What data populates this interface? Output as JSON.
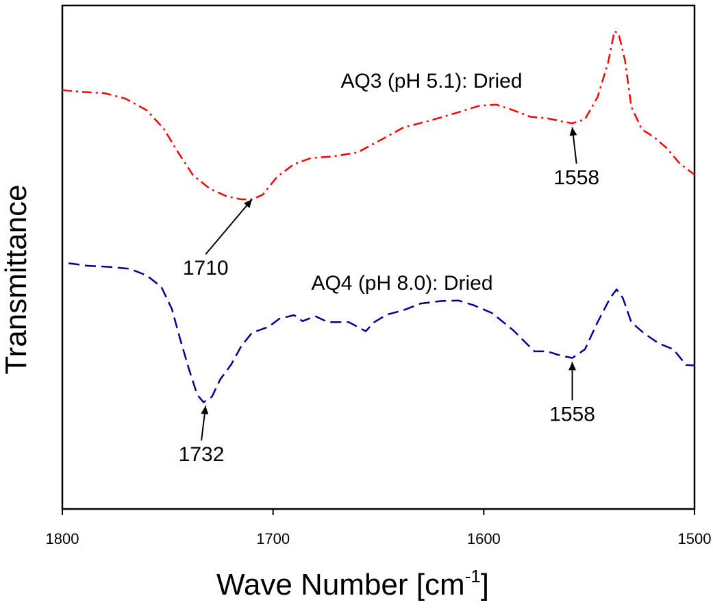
{
  "chart_data": {
    "type": "line",
    "title": "",
    "xlabel": "Wave Number [cm",
    "xlabel_sup": "-1",
    "xlabel_suffix": "]",
    "ylabel": "Transmittance",
    "xlim": [
      1800,
      1500
    ],
    "x_reversed": true,
    "ylim": [
      0,
      100
    ],
    "y_ticks_shown": false,
    "grid": false,
    "legend": "none",
    "x_ticks": [
      "1800",
      "1700",
      "1600",
      "1500"
    ],
    "series": [
      {
        "name": "AQ3 (pH 5.1): Dried",
        "color": "#ff0000",
        "dash": "dash-dot",
        "x": [
          1800,
          1790,
          1780,
          1770,
          1760,
          1752,
          1745,
          1738,
          1730,
          1722,
          1715,
          1710,
          1705,
          1698,
          1690,
          1682,
          1672,
          1660,
          1648,
          1638,
          1625,
          1612,
          1602,
          1594,
          1586,
          1578,
          1570,
          1562,
          1558,
          1552,
          1546,
          1541,
          1538,
          1536,
          1533,
          1530,
          1525,
          1519,
          1513,
          1507,
          1500
        ],
        "y": [
          83.2,
          82.8,
          82.6,
          81.5,
          79.2,
          75.6,
          70.8,
          66.3,
          63.6,
          62.1,
          61.5,
          61.5,
          62.4,
          66.0,
          68.5,
          69.7,
          70.0,
          70.8,
          73.5,
          75.8,
          77.2,
          78.8,
          80.1,
          80.3,
          79.2,
          77.9,
          77.6,
          76.9,
          76.6,
          77.4,
          81.8,
          88.7,
          94.9,
          94.4,
          89.1,
          79.9,
          75.4,
          73.8,
          71.6,
          68.6,
          66.4
        ],
        "label": "AQ3 (pH 5.1): Dried"
      },
      {
        "name": "AQ4 (pH 8.0): Dried",
        "color": "#000099",
        "dash": "dashed",
        "x": [
          1797,
          1788,
          1778,
          1768,
          1760,
          1753,
          1748,
          1744,
          1740,
          1736,
          1733,
          1729,
          1725,
          1720,
          1715,
          1710,
          1702,
          1697,
          1690,
          1686,
          1680,
          1674,
          1664,
          1656,
          1652,
          1646,
          1638,
          1630,
          1620,
          1612,
          1605,
          1596,
          1586,
          1576,
          1570,
          1563,
          1558,
          1552,
          1546,
          1540,
          1537,
          1534,
          1530,
          1524,
          1517,
          1510,
          1504,
          1500
        ],
        "y": [
          48.8,
          48.3,
          48.1,
          47.7,
          46.4,
          44.1,
          39.7,
          33.6,
          27.9,
          22.7,
          21.2,
          22.3,
          25.8,
          28.6,
          32.4,
          35.0,
          36.2,
          37.8,
          38.5,
          37.3,
          38.3,
          37.1,
          37.1,
          35.3,
          37.1,
          38.6,
          39.5,
          40.8,
          41.3,
          41.4,
          40.5,
          38.9,
          35.5,
          31.3,
          31.3,
          30.4,
          30.0,
          31.7,
          37.1,
          41.9,
          43.6,
          41.9,
          37.1,
          34.9,
          32.9,
          31.7,
          28.6,
          28.5
        ],
        "label": "AQ4 (pH 8.0): Dried"
      }
    ],
    "annotations": [
      {
        "text": "1710",
        "x": 1710,
        "arrow_to_y": 61.5,
        "label_y": 46.5,
        "label_x": 1732
      },
      {
        "text": "1558",
        "x": 1558,
        "arrow_to_y": 75.8,
        "label_y": 64.5,
        "label_x": 1556
      },
      {
        "text": "1732",
        "x": 1732,
        "arrow_to_y": 20.5,
        "label_y": 9.5,
        "label_x": 1734
      },
      {
        "text": "1558",
        "x": 1558,
        "arrow_to_y": 29.2,
        "label_y": 17.5,
        "label_x": 1558
      }
    ]
  }
}
